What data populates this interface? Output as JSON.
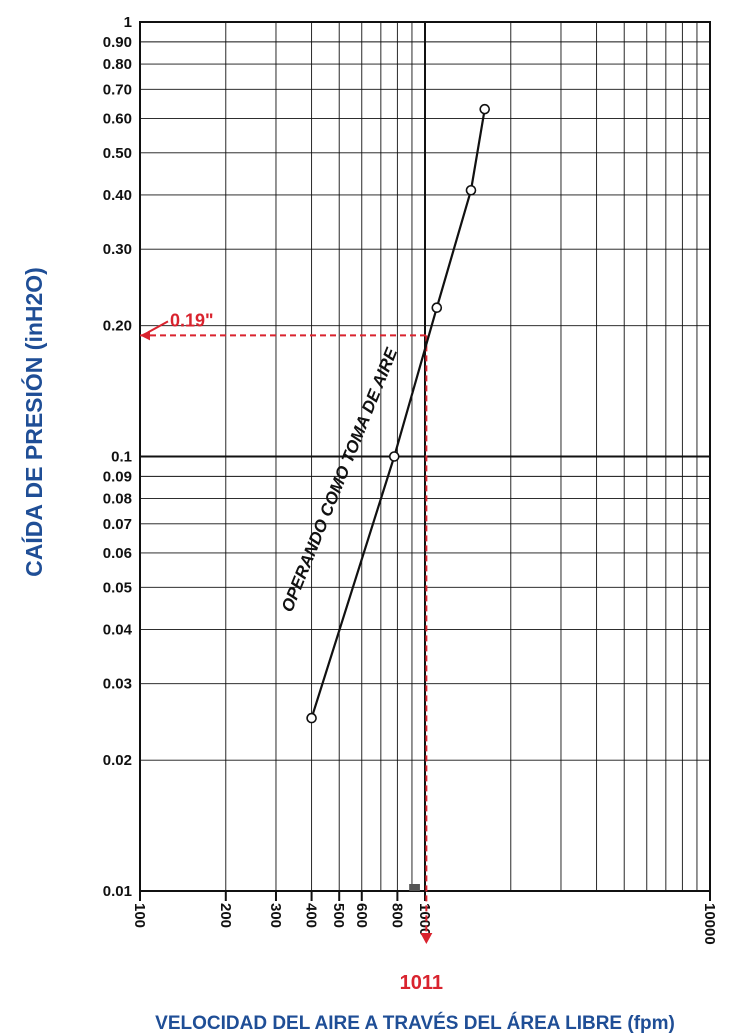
{
  "chart_data": {
    "type": "line",
    "xlabel": "VELOCIDAD DEL AIRE A TRAVÉS DEL ÁREA LIBRE (fpm)",
    "ylabel": "CAÍDA DE PRESIÓN (inH2O)",
    "x_scale": "log",
    "y_scale": "log",
    "xlim": [
      100,
      10000
    ],
    "ylim": [
      0.01,
      1
    ],
    "grid": true,
    "x_ticks": [
      "100",
      "200",
      "300",
      "400",
      "500",
      "600",
      "800",
      "1000",
      "10000"
    ],
    "y_ticks": [
      "1",
      "0.90",
      "0.80",
      "0.70",
      "0.60",
      "0.50",
      "0.40",
      "0.30",
      "0.20",
      "0.1",
      "0.09",
      "0.08",
      "0.07",
      "0.06",
      "0.05",
      "0.04",
      "0.03",
      "0.02",
      "0.01"
    ],
    "series": [
      {
        "name": "OPERANDO COMO TOMA DE AIRE",
        "color": "#111111",
        "marker": "open-circle",
        "points": [
          {
            "x": 400,
            "y": 0.025
          },
          {
            "x": 780,
            "y": 0.1
          },
          {
            "x": 1100,
            "y": 0.22
          },
          {
            "x": 1450,
            "y": 0.41
          },
          {
            "x": 1620,
            "y": 0.63
          }
        ]
      }
    ],
    "annotations": [
      {
        "label": "0.19\"",
        "axis": "y",
        "value": 0.19,
        "color": "#d9232e"
      },
      {
        "label": "1011",
        "axis": "x",
        "value": 1011,
        "color": "#d9232e"
      }
    ]
  }
}
